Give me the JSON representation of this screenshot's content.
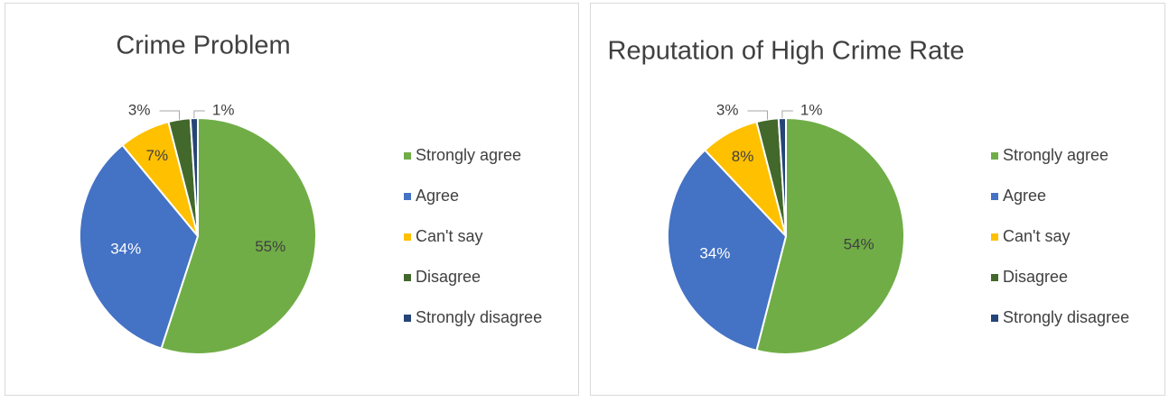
{
  "chart_data": [
    {
      "type": "pie",
      "title": "Crime Problem",
      "categories": [
        "Strongly agree",
        "Agree",
        "Can't say",
        "Disagree",
        "Strongly disagree"
      ],
      "values": [
        55,
        34,
        7,
        3,
        1
      ],
      "value_labels": [
        "55%",
        "34%",
        "7%",
        "3%",
        "1%"
      ],
      "colors": [
        "#70ad47",
        "#4472c4",
        "#ffc000",
        "#43682b",
        "#264478"
      ],
      "legend": "right"
    },
    {
      "type": "pie",
      "title": "Reputation of High Crime Rate",
      "categories": [
        "Strongly agree",
        "Agree",
        "Can't say",
        "Disagree",
        "Strongly disagree"
      ],
      "values": [
        54,
        34,
        8,
        3,
        1
      ],
      "value_labels": [
        "54%",
        "34%",
        "8%",
        "3%",
        "1%"
      ],
      "colors": [
        "#70ad47",
        "#4472c4",
        "#ffc000",
        "#43682b",
        "#264478"
      ],
      "legend": "right"
    }
  ]
}
